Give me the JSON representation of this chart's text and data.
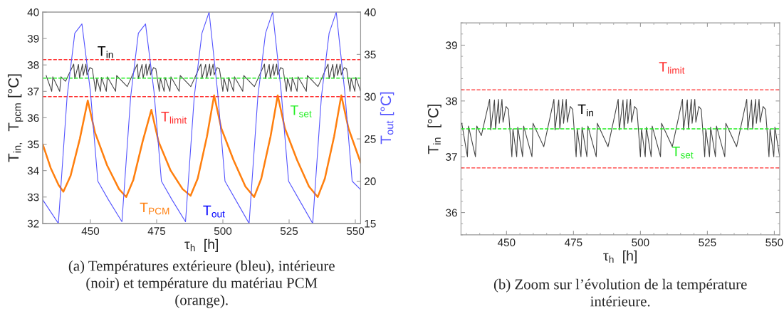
{
  "chart_data": [
    {
      "type": "line",
      "xlabel": "τ$_{h}$  [h]",
      "ylabel": "T$_{in,}$  T$_{pcm}$ [°C]",
      "y2label": "T$_{out}$ [°C]",
      "xlim": [
        432,
        552
      ],
      "xticks": [
        450,
        475,
        500,
        525,
        550
      ],
      "ylim": [
        32,
        40
      ],
      "yticks": [
        32,
        33,
        34,
        35,
        36,
        37,
        38,
        39,
        40
      ],
      "y2lim": [
        15,
        40
      ],
      "y2ticks": [
        15,
        20,
        25,
        30,
        35,
        40
      ],
      "series": [
        {
          "name": "T$_{out}$",
          "color": "#5555ff",
          "axis": "y2",
          "x": [
            432,
            437.9,
            441.2,
            444.1,
            446.8,
            450.0,
            452.8,
            456.8,
            461.9,
            465.2,
            468.1,
            470.8,
            474.0,
            476.8,
            480.8,
            485.9,
            489.2,
            492.1,
            494.8,
            498.0,
            500.8,
            504.8,
            509.9,
            513.2,
            516.1,
            518.8,
            522.0,
            524.8,
            528.8,
            533.9,
            537.2,
            540.1,
            542.8,
            546.0,
            548.8,
            552
          ],
          "values": [
            17.8,
            15,
            30,
            37.5,
            38.6,
            30.6,
            20,
            17.8,
            15.2,
            30,
            37.5,
            38.6,
            30.6,
            20,
            17.8,
            15.2,
            30,
            37.5,
            40,
            30.6,
            20,
            17.8,
            15,
            30,
            37.5,
            40,
            30.6,
            20,
            17.8,
            15,
            30,
            37.5,
            40,
            30.6,
            20,
            19.0
          ]
        },
        {
          "name": "T$_{in}$",
          "color": "#444444",
          "x": [
            433.3,
            435.4,
            435.8,
            438.4,
            438.9,
            440.6,
            443.7,
            444.1,
            445.5,
            445.9,
            447.0,
            447.3,
            448.3,
            448.7,
            449.8,
            450.7,
            452.0,
            452.4,
            453.8,
            454.2,
            456.0,
            456.4,
            459.5,
            459.9,
            463.9,
            467.7,
            468.1,
            469.5,
            469.9,
            471.0,
            471.3,
            472.3,
            472.7,
            473.8,
            474.7,
            476.0,
            476.4,
            477.8,
            478.2,
            480.0,
            480.4,
            483.5,
            483.9,
            487.9,
            491.7,
            492.1,
            493.5,
            493.9,
            495.0,
            495.3,
            496.3,
            496.7,
            497.8,
            498.7,
            500.0,
            500.4,
            501.8,
            502.2,
            504.0,
            504.4,
            507.5,
            507.9,
            511.9,
            515.7,
            516.1,
            517.5,
            517.9,
            519.0,
            519.3,
            520.3,
            520.7,
            521.8,
            522.7,
            524.0,
            524.4,
            525.8,
            526.2,
            528.0,
            528.4,
            531.5,
            531.9,
            535.9,
            539.7,
            540.1,
            541.5,
            541.9,
            543.0,
            543.3,
            544.3,
            544.7,
            545.8,
            546.7,
            548.0,
            548.4,
            549.8,
            550.2,
            552.0
          ],
          "values": [
            37.6,
            37.0,
            37.55,
            37.0,
            37.55,
            37.38,
            38.03,
            37.48,
            38.02,
            37.5,
            38.03,
            37.6,
            38.03,
            37.62,
            37.9,
            37.85,
            37.0,
            37.5,
            37.0,
            37.53,
            37.0,
            37.55,
            37.0,
            37.6,
            37.18,
            38.03,
            37.48,
            38.02,
            37.5,
            38.03,
            37.6,
            38.03,
            37.62,
            37.9,
            37.85,
            37.0,
            37.5,
            37.0,
            37.53,
            37.0,
            37.55,
            37.0,
            37.6,
            37.18,
            38.03,
            37.48,
            38.02,
            37.5,
            38.03,
            37.6,
            38.03,
            37.62,
            37.9,
            37.85,
            37.0,
            37.5,
            37.0,
            37.53,
            37.0,
            37.55,
            37.0,
            37.6,
            37.18,
            38.03,
            37.48,
            38.02,
            37.5,
            38.03,
            37.6,
            38.03,
            37.62,
            37.9,
            37.85,
            37.0,
            37.5,
            37.0,
            37.53,
            37.0,
            37.55,
            37.0,
            37.6,
            37.18,
            38.03,
            37.48,
            38.02,
            37.5,
            38.03,
            37.6,
            38.03,
            37.62,
            37.9,
            37.85,
            37.0,
            37.5,
            37.0,
            37.53,
            37.0
          ]
        },
        {
          "name": "T$_{PCM}$",
          "color": "#ff7f0e",
          "x": [
            432,
            435,
            438,
            439.8,
            442.5,
            446,
            449,
            451.7,
            456.3,
            460.8,
            463.5,
            466.2,
            469.7,
            473,
            475.7,
            480.3,
            484.8,
            487.8,
            490.5,
            494,
            496.7,
            499.4,
            504,
            508.5,
            511.8,
            514.5,
            518,
            520.7,
            523.4,
            528,
            532.5,
            535.8,
            538.5,
            542,
            544.7,
            547.4,
            552
          ],
          "values": [
            35.0,
            34.1,
            33.45,
            33.2,
            33.8,
            35.2,
            36.65,
            35.45,
            34.2,
            33.3,
            33.0,
            33.65,
            35.1,
            36.3,
            35.1,
            34.0,
            33.3,
            33.05,
            33.7,
            35.3,
            36.85,
            35.6,
            34.4,
            33.4,
            33.0,
            33.7,
            35.3,
            36.85,
            35.6,
            34.4,
            33.4,
            33.0,
            33.7,
            35.3,
            36.85,
            35.6,
            34.3
          ]
        }
      ],
      "ref_lines": [
        {
          "axis": "y",
          "value": 38.2,
          "color": "#ff3030",
          "line_style": "dashed"
        },
        {
          "axis": "y",
          "value": 36.8,
          "color": "#ff3030",
          "line_style": "dashed",
          "label": "T$_{limit}$"
        },
        {
          "axis": "y",
          "value": 37.5,
          "color": "#22ee22",
          "line_style": "dashed",
          "label": "T$_{set}$"
        }
      ],
      "annotations": [
        "(a) Températures extérieure (bleu), intérieure\n(noir) et température du matériau PCM\n(orange)."
      ]
    },
    {
      "type": "line",
      "xlabel": "τ$_{h}$  [h]",
      "ylabel": "T$_{in}$  [°C]",
      "xlim": [
        433,
        552
      ],
      "xticks": [
        450,
        475,
        500,
        525,
        550
      ],
      "ylim": [
        35.6,
        39.4
      ],
      "yticks": [
        36,
        37,
        38,
        39
      ],
      "series": [
        {
          "name": "T$_{in}$",
          "color": "#444444",
          "x": [
            433.3,
            435.4,
            435.8,
            438.4,
            438.9,
            440.6,
            443.7,
            444.1,
            445.5,
            445.9,
            447.0,
            447.3,
            448.3,
            448.7,
            449.8,
            450.7,
            452.0,
            452.4,
            453.8,
            454.2,
            456.0,
            456.4,
            459.5,
            459.9,
            463.9,
            467.7,
            468.1,
            469.5,
            469.9,
            471.0,
            471.3,
            472.3,
            472.7,
            473.8,
            474.7,
            476.0,
            476.4,
            477.8,
            478.2,
            480.0,
            480.4,
            483.5,
            483.9,
            487.9,
            491.7,
            492.1,
            493.5,
            493.9,
            495.0,
            495.3,
            496.3,
            496.7,
            497.8,
            498.7,
            500.0,
            500.4,
            501.8,
            502.2,
            504.0,
            504.4,
            507.5,
            507.9,
            511.9,
            515.7,
            516.1,
            517.5,
            517.9,
            519.0,
            519.3,
            520.3,
            520.7,
            521.8,
            522.7,
            524.0,
            524.4,
            525.8,
            526.2,
            528.0,
            528.4,
            531.5,
            531.9,
            535.9,
            539.7,
            540.1,
            541.5,
            541.9,
            543.0,
            543.3,
            544.3,
            544.7,
            545.8,
            546.7,
            548.0,
            548.4,
            549.8,
            550.2,
            552.0
          ],
          "values": [
            37.6,
            37.0,
            37.55,
            37.0,
            37.55,
            37.38,
            38.03,
            37.48,
            38.02,
            37.5,
            38.03,
            37.6,
            38.03,
            37.62,
            37.9,
            37.85,
            37.0,
            37.5,
            37.0,
            37.53,
            37.0,
            37.55,
            37.0,
            37.6,
            37.18,
            38.03,
            37.48,
            38.02,
            37.5,
            38.03,
            37.6,
            38.03,
            37.62,
            37.9,
            37.85,
            37.0,
            37.5,
            37.0,
            37.53,
            37.0,
            37.55,
            37.0,
            37.6,
            37.18,
            38.03,
            37.48,
            38.02,
            37.5,
            38.03,
            37.6,
            38.03,
            37.62,
            37.9,
            37.85,
            37.0,
            37.5,
            37.0,
            37.53,
            37.0,
            37.55,
            37.0,
            37.6,
            37.18,
            38.03,
            37.48,
            38.02,
            37.5,
            38.03,
            37.6,
            38.03,
            37.62,
            37.9,
            37.85,
            37.0,
            37.5,
            37.0,
            37.53,
            37.0,
            37.55,
            37.0,
            37.6,
            37.18,
            38.03,
            37.48,
            38.02,
            37.5,
            38.03,
            37.6,
            38.03,
            37.62,
            37.9,
            37.85,
            37.0,
            37.5,
            37.0,
            37.53,
            37.0
          ]
        }
      ],
      "ref_lines": [
        {
          "axis": "y",
          "value": 38.2,
          "color": "#ff3030",
          "line_style": "dashed",
          "label": "T$_{limit}$"
        },
        {
          "axis": "y",
          "value": 36.8,
          "color": "#ff3030",
          "line_style": "dashed"
        },
        {
          "axis": "y",
          "value": 37.5,
          "color": "#22ee22",
          "line_style": "dashed",
          "label": "T$_{set}$"
        }
      ],
      "annotations": [
        "(b) Zoom sur l’évolution de la température\nintérieure."
      ]
    }
  ]
}
